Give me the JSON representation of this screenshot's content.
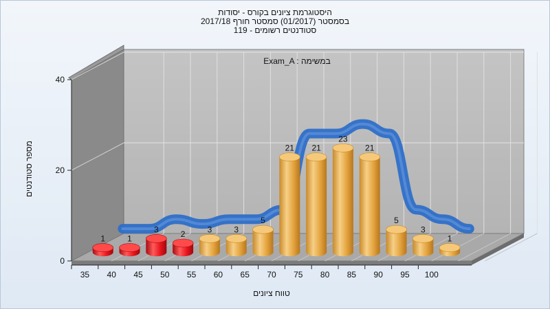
{
  "chart_data": {
    "type": "bar",
    "title_lines": [
      "היסטוגרמת ציונים בקורס - יסודות",
      "בסמסטר  (01/2017)  סמסטר חורף 2017/18",
      "סטודנטים רשומים - 119"
    ],
    "inner_label": "Exam_A : במשימה",
    "xlabel": "טווח ציונים",
    "ylabel": "מספר סטודנטים",
    "categories": [
      "35",
      "40",
      "45",
      "50",
      "55",
      "60",
      "65",
      "70",
      "75",
      "80",
      "85",
      "90",
      "95",
      "100"
    ],
    "values": [
      1,
      1,
      3,
      2,
      3,
      3,
      5,
      21,
      21,
      23,
      21,
      5,
      3,
      1
    ],
    "y_ticks": [
      0,
      20,
      40
    ],
    "ylim": [
      0,
      40
    ],
    "bar_colors": {
      "fail": "#e8141c",
      "pass": "#e7a53a"
    },
    "pass_threshold": 55,
    "curve_color": "#2e6fc8",
    "grid": true
  }
}
